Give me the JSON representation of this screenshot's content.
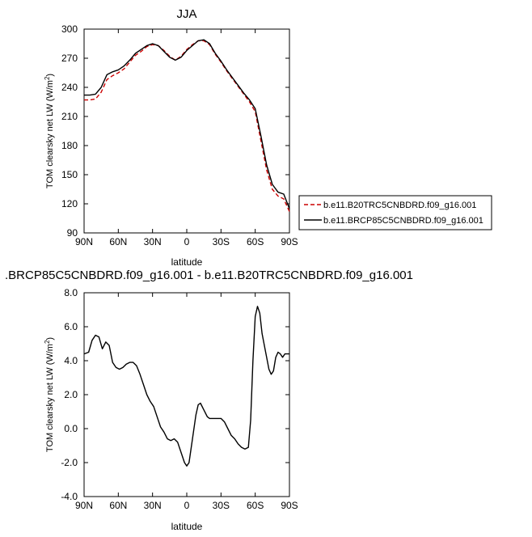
{
  "chart_data": [
    {
      "type": "line",
      "title": "JJA",
      "xlabel": "latitude",
      "ylabel": "TOM clearsky net LW (W/m",
      "ylabel_sup": "2",
      "ylabel_end": ")",
      "x_ticks": [
        "90N",
        "60N",
        "30N",
        "0",
        "30S",
        "60S",
        "90S"
      ],
      "y_ticks": [
        "300",
        "270",
        "240",
        "210",
        "180",
        "150",
        "120",
        "90"
      ],
      "xlim": [
        90,
        -90
      ],
      "ylim": [
        90,
        300
      ],
      "legend_placement": "right",
      "series": [
        {
          "name": "b.e11.B20TRC5CNBDRD.f09_g16.001",
          "color": "#cc0000",
          "style": "dashed",
          "x": [
            90,
            85,
            80,
            75,
            70,
            65,
            60,
            55,
            50,
            45,
            40,
            35,
            30,
            25,
            20,
            15,
            10,
            5,
            0,
            -5,
            -10,
            -15,
            -20,
            -25,
            -30,
            -35,
            -40,
            -45,
            -50,
            -55,
            -60,
            -65,
            -70,
            -75,
            -80,
            -85,
            -90
          ],
          "y": [
            227,
            227,
            228,
            235,
            248,
            252,
            255,
            259,
            266,
            273,
            277,
            282,
            284,
            283,
            278,
            272,
            268,
            272,
            279,
            284,
            288,
            288,
            284,
            274,
            266,
            257,
            249,
            241,
            233,
            225,
            215,
            185,
            155,
            135,
            128,
            125,
            112
          ]
        },
        {
          "name": "b.e11.BRCP85C5CNBDRD.f09_g16.001",
          "color": "#000000",
          "style": "solid",
          "x": [
            90,
            85,
            80,
            75,
            70,
            65,
            60,
            55,
            50,
            45,
            40,
            35,
            30,
            25,
            20,
            15,
            10,
            5,
            0,
            -5,
            -10,
            -15,
            -20,
            -25,
            -30,
            -35,
            -40,
            -45,
            -50,
            -55,
            -60,
            -65,
            -70,
            -75,
            -80,
            -85,
            -90
          ],
          "y": [
            232,
            232,
            233,
            240,
            253,
            256,
            258,
            262,
            268,
            275,
            279,
            283,
            285,
            283,
            277,
            271,
            268,
            271,
            278,
            283,
            288,
            289,
            285,
            275,
            267,
            258,
            250,
            242,
            234,
            227,
            218,
            190,
            160,
            140,
            132,
            130,
            115
          ]
        }
      ]
    },
    {
      "type": "line",
      "title": ".BRCP85C5CNBDRD.f09_g16.001 - b.e11.B20TRC5CNBDRD.f09_g16.001",
      "xlabel": "latitude",
      "ylabel": "TOM clearsky net LW (W/m",
      "ylabel_sup": "2",
      "ylabel_end": ")",
      "x_ticks": [
        "90N",
        "60N",
        "30N",
        "0",
        "30S",
        "60S",
        "90S"
      ],
      "y_ticks": [
        "8.0",
        "6.0",
        "4.0",
        "2.0",
        "0.0",
        "-2.0",
        "-4.0"
      ],
      "xlim": [
        90,
        -90
      ],
      "ylim": [
        -4,
        8
      ],
      "series": [
        {
          "name": "",
          "color": "#000000",
          "style": "solid",
          "x": [
            90,
            86,
            83,
            80,
            77,
            74,
            71,
            68,
            65,
            62,
            59,
            56,
            53,
            50,
            47,
            44,
            41,
            38,
            35,
            32,
            29,
            26,
            23,
            20,
            17,
            14,
            11,
            8,
            5,
            2,
            0,
            -2,
            -5,
            -8,
            -10,
            -12,
            -15,
            -18,
            -20,
            -22,
            -25,
            -28,
            -30,
            -33,
            -36,
            -39,
            -42,
            -45,
            -48,
            -51,
            -54,
            -56,
            -58,
            -60,
            -62,
            -64,
            -66,
            -68,
            -70,
            -72,
            -74,
            -76,
            -78,
            -80,
            -82,
            -84,
            -86,
            -88,
            -90
          ],
          "y": [
            4.4,
            4.5,
            5.2,
            5.5,
            5.4,
            4.7,
            5.1,
            4.9,
            3.9,
            3.6,
            3.5,
            3.6,
            3.8,
            3.9,
            3.9,
            3.7,
            3.2,
            2.6,
            2.0,
            1.6,
            1.3,
            0.7,
            0.1,
            -0.2,
            -0.6,
            -0.7,
            -0.6,
            -0.8,
            -1.4,
            -2.0,
            -2.2,
            -2.0,
            -0.6,
            0.8,
            1.4,
            1.5,
            1.1,
            0.7,
            0.6,
            0.6,
            0.6,
            0.6,
            0.6,
            0.4,
            0.0,
            -0.4,
            -0.6,
            -0.9,
            -1.1,
            -1.2,
            -1.1,
            0.5,
            4.0,
            6.6,
            7.2,
            6.8,
            5.6,
            4.9,
            4.2,
            3.5,
            3.2,
            3.4,
            4.2,
            4.5,
            4.4,
            4.2,
            4.4,
            4.4,
            4.4
          ]
        }
      ]
    }
  ]
}
